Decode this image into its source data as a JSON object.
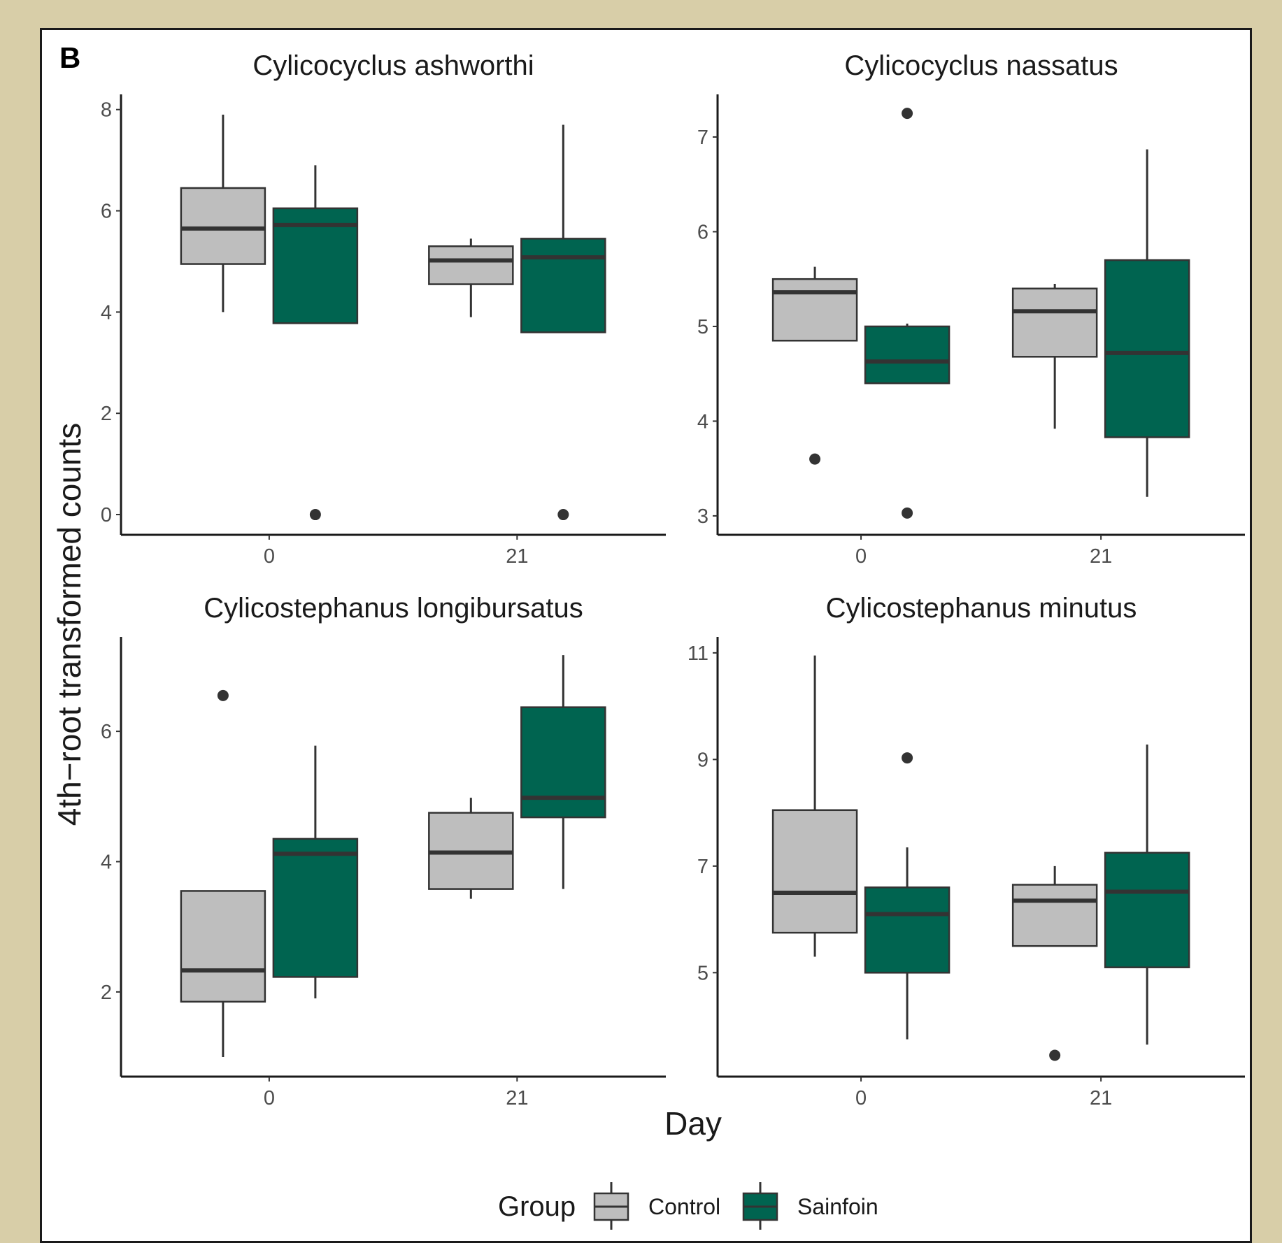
{
  "panel_tag": "B",
  "colors": {
    "page_background": "#d8cea8",
    "control_fill": "#bebebe",
    "sainfoin_fill": "#006450"
  },
  "chart_data": {
    "type": "boxplot",
    "layout": "2x2 facets",
    "xlabel": "Day",
    "ylabel": "4th−root transformed counts",
    "x_categories": [
      "0",
      "21"
    ],
    "groups": [
      "Control",
      "Sainfoin"
    ],
    "legend": {
      "title": "Group",
      "position": "bottom",
      "entries": [
        {
          "label": "Control",
          "color": "#bebebe"
        },
        {
          "label": "Sainfoin",
          "color": "#006450"
        }
      ]
    },
    "grid": false,
    "panels": [
      {
        "title": "Cylicocyclus ashworthi",
        "ylim": [
          -0.4,
          8.3
        ],
        "yticks": [
          0,
          2,
          4,
          6,
          8
        ],
        "boxes": [
          {
            "day": "0",
            "group": "Control",
            "min": 4.0,
            "q1": 4.95,
            "median": 5.65,
            "q3": 6.45,
            "max": 7.9,
            "outliers": []
          },
          {
            "day": "0",
            "group": "Sainfoin",
            "min": 3.78,
            "q1": 3.78,
            "median": 5.72,
            "q3": 6.05,
            "max": 6.9,
            "outliers": [
              0.0
            ]
          },
          {
            "day": "21",
            "group": "Control",
            "min": 3.9,
            "q1": 4.55,
            "median": 5.02,
            "q3": 5.3,
            "max": 5.45,
            "outliers": []
          },
          {
            "day": "21",
            "group": "Sainfoin",
            "min": 3.6,
            "q1": 3.6,
            "median": 5.08,
            "q3": 5.45,
            "max": 7.7,
            "outliers": [
              0.0
            ]
          }
        ]
      },
      {
        "title": "Cylicocyclus nassatus",
        "ylim": [
          2.8,
          7.45
        ],
        "yticks": [
          3,
          4,
          5,
          6,
          7
        ],
        "boxes": [
          {
            "day": "0",
            "group": "Control",
            "min": 4.85,
            "q1": 4.85,
            "median": 5.36,
            "q3": 5.5,
            "max": 5.63,
            "outliers": [
              3.6
            ]
          },
          {
            "day": "0",
            "group": "Sainfoin",
            "min": 4.4,
            "q1": 4.4,
            "median": 4.63,
            "q3": 5.0,
            "max": 5.03,
            "outliers": [
              7.25,
              3.03
            ]
          },
          {
            "day": "21",
            "group": "Control",
            "min": 3.92,
            "q1": 4.68,
            "median": 5.16,
            "q3": 5.4,
            "max": 5.45,
            "outliers": []
          },
          {
            "day": "21",
            "group": "Sainfoin",
            "min": 3.2,
            "q1": 3.83,
            "median": 4.72,
            "q3": 5.7,
            "max": 6.87,
            "outliers": []
          }
        ]
      },
      {
        "title": "Cylicostephanus longibursatus",
        "ylim": [
          0.7,
          7.45
        ],
        "yticks": [
          2,
          4,
          6
        ],
        "boxes": [
          {
            "day": "0",
            "group": "Control",
            "min": 1.0,
            "q1": 1.85,
            "median": 2.33,
            "q3": 3.55,
            "max": 3.55,
            "outliers": [
              6.55
            ]
          },
          {
            "day": "0",
            "group": "Sainfoin",
            "min": 1.9,
            "q1": 2.23,
            "median": 4.12,
            "q3": 4.35,
            "max": 5.78,
            "outliers": []
          },
          {
            "day": "21",
            "group": "Control",
            "min": 3.43,
            "q1": 3.58,
            "median": 4.14,
            "q3": 4.75,
            "max": 4.98,
            "outliers": []
          },
          {
            "day": "21",
            "group": "Sainfoin",
            "min": 3.58,
            "q1": 4.68,
            "median": 4.98,
            "q3": 6.37,
            "max": 7.17,
            "outliers": []
          }
        ]
      },
      {
        "title": "Cylicostephanus minutus",
        "ylim": [
          3.05,
          11.3
        ],
        "yticks": [
          5,
          7,
          9,
          11
        ],
        "boxes": [
          {
            "day": "0",
            "group": "Control",
            "min": 5.3,
            "q1": 5.75,
            "median": 6.5,
            "q3": 8.05,
            "max": 10.95,
            "outliers": []
          },
          {
            "day": "0",
            "group": "Sainfoin",
            "min": 3.75,
            "q1": 5.0,
            "median": 6.1,
            "q3": 6.6,
            "max": 7.35,
            "outliers": [
              9.03
            ]
          },
          {
            "day": "21",
            "group": "Control",
            "min": 5.5,
            "q1": 5.5,
            "median": 6.35,
            "q3": 6.65,
            "max": 7.0,
            "outliers": [
              3.45
            ]
          },
          {
            "day": "21",
            "group": "Sainfoin",
            "min": 3.65,
            "q1": 5.1,
            "median": 6.52,
            "q3": 7.25,
            "max": 9.28,
            "outliers": []
          }
        ]
      }
    ]
  }
}
